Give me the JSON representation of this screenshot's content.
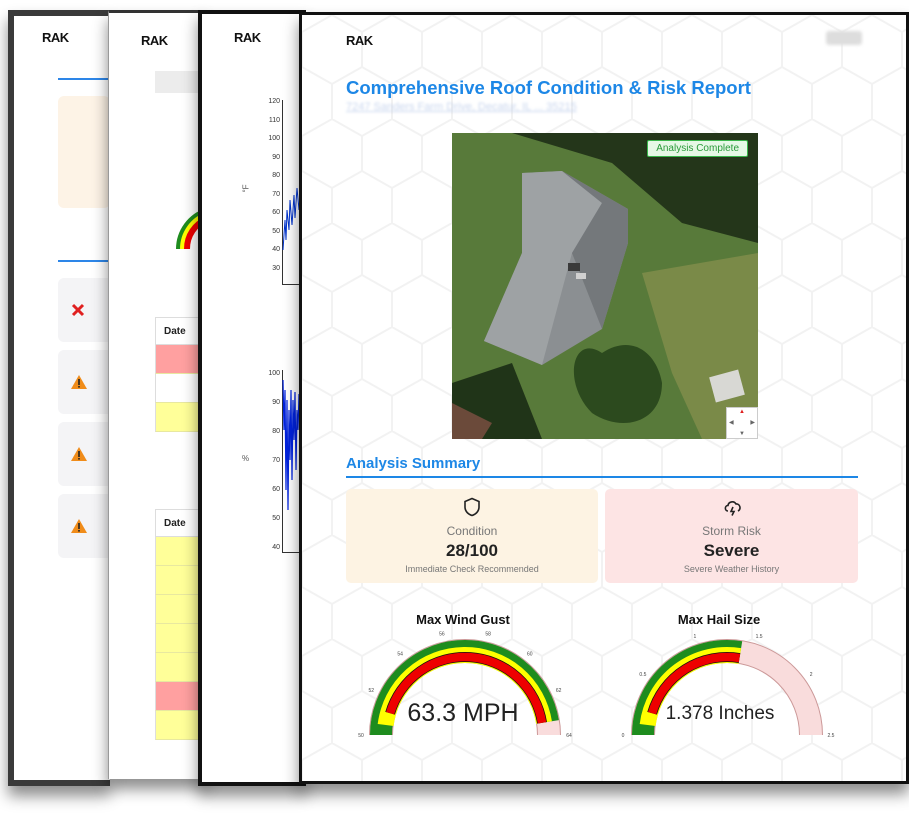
{
  "brand": {
    "logo_text": "RAK"
  },
  "page2": {
    "table1": {
      "header": "Date",
      "row_colors": [
        "#ffa0a0",
        "#ffffff",
        "#ffff99"
      ]
    },
    "table2": {
      "header": "Date",
      "row_colors": [
        "#ffff99",
        "#ffff99",
        "#ffff99",
        "#ffff99",
        "#ffff99",
        "#ffa0a0",
        "#ffff99"
      ]
    }
  },
  "page3": {
    "temp_chart": {
      "ylabel": "°F",
      "ticks": [
        "120",
        "110",
        "100",
        "90",
        "80",
        "70",
        "60",
        "50",
        "40",
        "30"
      ]
    },
    "humidity_chart": {
      "ylabel": "%",
      "ticks": [
        "100",
        "90",
        "80",
        "70",
        "60",
        "50",
        "40"
      ]
    }
  },
  "report": {
    "title": "Comprehensive Roof Condition & Risk Report",
    "address": "7247 Sanders Farm Drive, Decatur, IL ... 35215",
    "image_badge": "Analysis Complete",
    "section_title": "Analysis Summary",
    "condition": {
      "label": "Condition",
      "value": "28/100",
      "note": "Immediate Check Recommended",
      "icon": "shield-icon",
      "bg": "#fdf3e3"
    },
    "storm": {
      "label": "Storm Risk",
      "value": "Severe",
      "note": "Severe Weather History",
      "icon": "storm-cloud-icon",
      "bg": "#fde4e4"
    }
  },
  "gauges": [
    {
      "title": "Max Wind Gust",
      "display": "63.3 MPH",
      "value": 63.3,
      "min": 50,
      "max": 64,
      "tick_labels": [
        "50",
        "52",
        "54",
        "56",
        "58",
        "60",
        "62",
        "64"
      ]
    },
    {
      "title": "Max Hail Size",
      "display": "1.378 Inches",
      "value": 1.378,
      "min": 0,
      "max": 2.5,
      "tick_labels": [
        "0",
        "0.5",
        "1",
        "1.5",
        "2",
        "2.5"
      ]
    }
  ],
  "colors": {
    "accent": "#1d87e6",
    "gauge_green": "#1e8c1e",
    "gauge_yellow": "#ffff00",
    "gauge_red": "#ee0000",
    "gauge_pink": "#f9dcdc"
  }
}
